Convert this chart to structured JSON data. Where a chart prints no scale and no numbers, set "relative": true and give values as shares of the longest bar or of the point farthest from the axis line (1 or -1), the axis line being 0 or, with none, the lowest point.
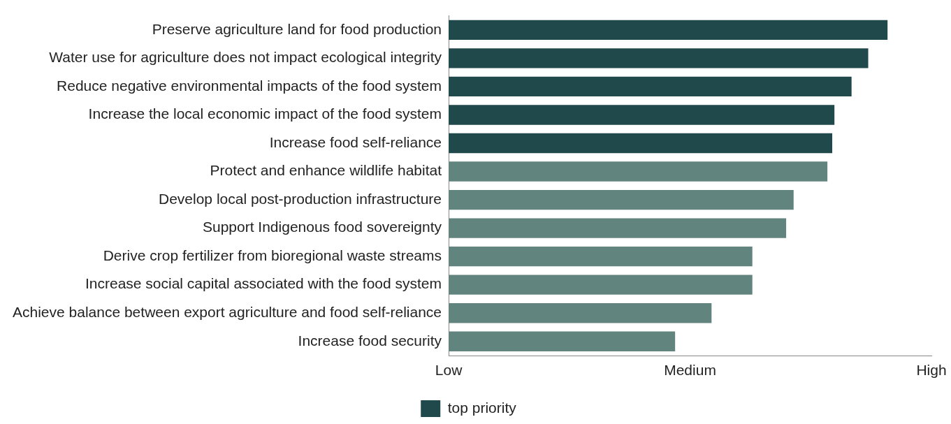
{
  "chart_data": {
    "type": "bar",
    "orientation": "horizontal",
    "relative": true,
    "grid": false,
    "legend": "bottom",
    "categories": [
      "Preserve agriculture land for food production",
      "Water use for agriculture does not impact ecological integrity",
      "Reduce negative environmental impacts of the food system",
      "Increase the local economic impact of the food system",
      "Increase food self-reliance",
      "Protect and enhance wildlife habitat",
      "Develop local post-production infrastructure",
      "Support Indigenous food sovereignty",
      "Derive crop fertilizer from bioregional waste streams",
      "Increase social capital associated with the food system",
      "Achieve balance between export agriculture and food self-reliance",
      "Increase food security"
    ],
    "series": [
      {
        "name": "top priority",
        "color": "#20494b",
        "values": [
          1,
          0.956,
          0.918,
          0.879,
          0.874,
          null,
          null,
          null,
          null,
          null,
          null,
          null
        ]
      },
      {
        "color": "#62847e",
        "values": [
          null,
          null,
          null,
          null,
          null,
          0.863,
          0.786,
          0.769,
          0.692,
          0.692,
          0.599,
          0.516
        ]
      }
    ],
    "annotations": [
      "Low",
      "Medium",
      "High"
    ]
  }
}
